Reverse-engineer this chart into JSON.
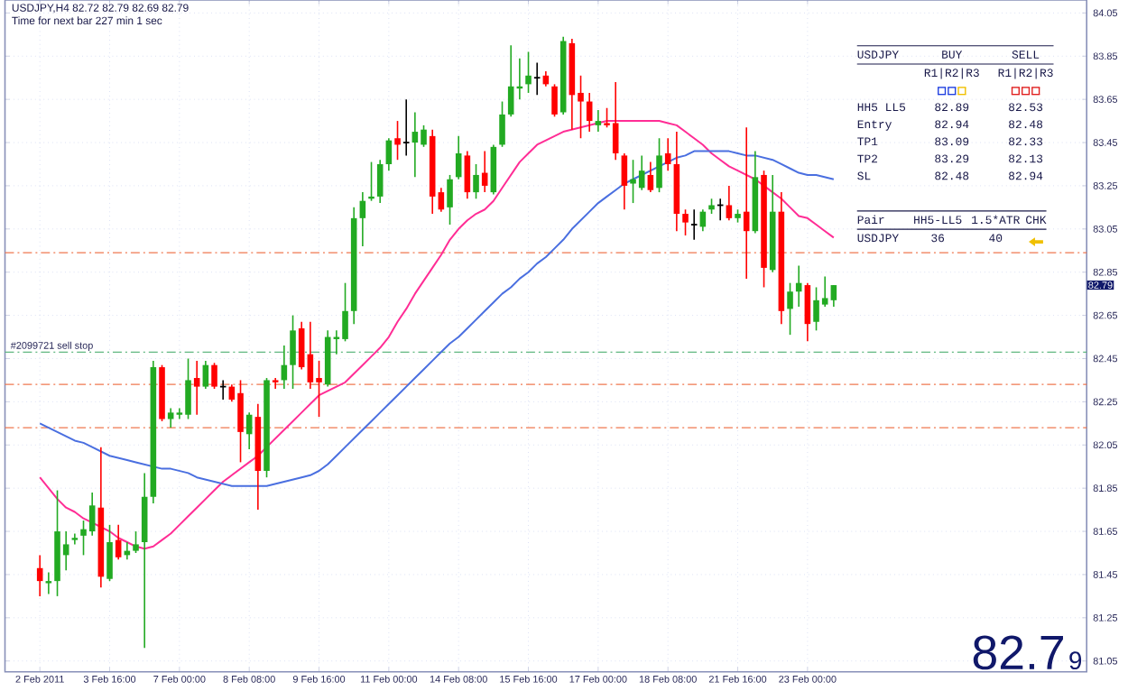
{
  "chart_data": [
    {
      "type": "candlestick",
      "title": "USDJPY,H4  82.72 82.79 82.69 82.79",
      "subtitle": "Time for next bar 227 min 1 sec",
      "categories": [
        "2 Feb 2011",
        null,
        null,
        null,
        null,
        null,
        null,
        null,
        "3 Feb 16:00",
        null,
        null,
        null,
        null,
        null,
        null,
        null,
        "7 Feb 00:00",
        null,
        null,
        null,
        null,
        null,
        null,
        null,
        "8 Feb 08:00",
        null,
        null,
        null,
        null,
        null,
        null,
        null,
        "9 Feb 16:00",
        null,
        null,
        null,
        null,
        null,
        null,
        null,
        "11 Feb 00:00",
        null,
        null,
        null,
        null,
        null,
        null,
        null,
        "14 Feb 08:00",
        null,
        null,
        null,
        null,
        null,
        null,
        null,
        "15 Feb 16:00",
        null,
        null,
        null,
        null,
        null,
        null,
        null,
        "17 Feb 00:00",
        null,
        null,
        null,
        null,
        null,
        null,
        null,
        "18 Feb 08:00",
        null,
        null,
        null,
        null,
        null,
        null,
        null,
        "21 Feb 16:00",
        null,
        null,
        null,
        null,
        null,
        null,
        null,
        "23 Feb 00:00",
        null,
        null,
        null
      ],
      "ohlc": [
        [
          81.48,
          81.54,
          81.35,
          81.42
        ],
        [
          81.41,
          81.46,
          81.36,
          81.42
        ],
        [
          81.42,
          81.84,
          81.35,
          81.65
        ],
        [
          81.54,
          81.65,
          81.47,
          81.59
        ],
        [
          81.61,
          81.64,
          81.59,
          81.62
        ],
        [
          81.63,
          81.7,
          81.54,
          81.66
        ],
        [
          81.65,
          81.83,
          81.63,
          81.77
        ],
        [
          81.76,
          82.04,
          81.39,
          81.44
        ],
        [
          81.43,
          81.68,
          81.42,
          81.6
        ],
        [
          81.61,
          81.68,
          81.52,
          81.53
        ],
        [
          81.54,
          81.6,
          81.52,
          81.56
        ],
        [
          81.56,
          81.65,
          81.55,
          81.59
        ],
        [
          81.6,
          81.92,
          81.11,
          81.81
        ],
        [
          81.81,
          82.44,
          81.78,
          82.41
        ],
        [
          82.41,
          82.42,
          82.16,
          82.17
        ],
        [
          82.17,
          82.22,
          82.13,
          82.2
        ],
        [
          82.19,
          82.22,
          82.17,
          82.2
        ],
        [
          82.19,
          82.45,
          82.17,
          82.35
        ],
        [
          82.36,
          82.44,
          82.19,
          82.32
        ],
        [
          82.32,
          82.44,
          82.31,
          82.42
        ],
        [
          82.42,
          82.43,
          82.31,
          82.32
        ],
        [
          82.32,
          82.35,
          82.26,
          82.32
        ],
        [
          82.32,
          82.33,
          82.25,
          82.26
        ],
        [
          82.29,
          82.35,
          81.97,
          82.11
        ],
        [
          82.1,
          82.2,
          82.03,
          82.19
        ],
        [
          82.18,
          82.24,
          81.75,
          81.93
        ],
        [
          81.93,
          82.36,
          81.9,
          82.35
        ],
        [
          82.35,
          82.36,
          82.31,
          82.34
        ],
        [
          82.35,
          82.51,
          82.31,
          82.42
        ],
        [
          82.42,
          82.65,
          82.31,
          82.58
        ],
        [
          82.59,
          82.62,
          82.4,
          82.41
        ],
        [
          82.47,
          82.62,
          82.31,
          82.34
        ],
        [
          82.36,
          82.44,
          82.18,
          82.34
        ],
        [
          82.33,
          82.58,
          82.32,
          82.55
        ],
        [
          82.54,
          82.58,
          82.47,
          82.55
        ],
        [
          82.54,
          82.8,
          82.53,
          82.67
        ],
        [
          82.67,
          83.15,
          82.61,
          83.1
        ],
        [
          83.1,
          83.22,
          82.97,
          83.18
        ],
        [
          83.19,
          83.36,
          83.18,
          83.2
        ],
        [
          83.2,
          83.37,
          83.17,
          83.35
        ],
        [
          83.35,
          83.47,
          83.32,
          83.46
        ],
        [
          83.47,
          83.55,
          83.37,
          83.44
        ],
        [
          83.45,
          83.65,
          83.39,
          83.45
        ],
        [
          83.45,
          83.59,
          83.29,
          83.5
        ],
        [
          83.44,
          83.53,
          83.43,
          83.51
        ],
        [
          83.48,
          83.51,
          83.12,
          83.2
        ],
        [
          83.22,
          83.24,
          83.13,
          83.14
        ],
        [
          83.15,
          83.3,
          83.07,
          83.28
        ],
        [
          83.29,
          83.48,
          83.28,
          83.4
        ],
        [
          83.39,
          83.41,
          83.19,
          83.22
        ],
        [
          83.22,
          83.35,
          83.19,
          83.3
        ],
        [
          83.31,
          83.41,
          83.22,
          83.25
        ],
        [
          83.22,
          83.44,
          83.21,
          83.43
        ],
        [
          83.44,
          83.64,
          83.43,
          83.58
        ],
        [
          83.58,
          83.9,
          83.57,
          83.71
        ],
        [
          83.7,
          83.84,
          83.65,
          83.71
        ],
        [
          83.72,
          83.87,
          83.68,
          83.76
        ],
        [
          83.75,
          83.82,
          83.67,
          83.75
        ],
        [
          83.76,
          83.78,
          83.71,
          83.72
        ],
        [
          83.71,
          83.72,
          83.57,
          83.58
        ],
        [
          83.59,
          83.94,
          83.58,
          83.92
        ],
        [
          83.91,
          83.93,
          83.51,
          83.67
        ],
        [
          83.68,
          83.76,
          83.47,
          83.64
        ],
        [
          83.64,
          83.68,
          83.5,
          83.55
        ],
        [
          83.53,
          83.6,
          83.5,
          83.55
        ],
        [
          83.54,
          83.61,
          83.52,
          83.53
        ],
        [
          83.54,
          83.73,
          83.37,
          83.4
        ],
        [
          83.39,
          83.4,
          83.14,
          83.25
        ],
        [
          83.26,
          83.37,
          83.17,
          83.28
        ],
        [
          83.24,
          83.39,
          83.23,
          83.32
        ],
        [
          83.3,
          83.36,
          83.22,
          83.23
        ],
        [
          83.24,
          83.47,
          83.22,
          83.39
        ],
        [
          83.4,
          83.47,
          83.32,
          83.35
        ],
        [
          83.35,
          83.5,
          83.04,
          83.12
        ],
        [
          83.12,
          83.14,
          83.02,
          83.08
        ],
        [
          83.07,
          83.14,
          83.0,
          83.07
        ],
        [
          83.06,
          83.14,
          83.04,
          83.13
        ],
        [
          83.14,
          83.19,
          83.12,
          83.16
        ],
        [
          83.16,
          83.19,
          83.09,
          83.16
        ],
        [
          83.16,
          83.25,
          83.09,
          83.1
        ],
        [
          83.1,
          83.14,
          83.08,
          83.12
        ],
        [
          83.13,
          83.52,
          82.82,
          83.04
        ],
        [
          83.04,
          83.41,
          83.03,
          83.29
        ],
        [
          83.3,
          83.32,
          82.78,
          82.87
        ],
        [
          82.86,
          83.3,
          82.85,
          83.13
        ],
        [
          83.13,
          83.22,
          82.61,
          82.67
        ],
        [
          82.68,
          82.8,
          82.56,
          82.76
        ],
        [
          82.76,
          82.88,
          82.69,
          82.8
        ],
        [
          82.79,
          82.8,
          82.53,
          82.61
        ],
        [
          82.62,
          82.78,
          82.58,
          82.72
        ],
        [
          82.7,
          82.83,
          82.69,
          82.73
        ],
        [
          82.72,
          82.79,
          82.69,
          82.79
        ]
      ],
      "colors": [
        "#ff0000",
        "#22aa22",
        "#22aa22",
        "#22aa22",
        "#22aa22",
        "#22aa22",
        "#22aa22",
        "#ff0000",
        "#22aa22",
        "#ff0000",
        "#22aa22",
        "#22aa22",
        "#22aa22",
        "#22aa22",
        "#ff0000",
        "#22aa22",
        "#22aa22",
        "#22aa22",
        "#ff0000",
        "#22aa22",
        "#ff0000",
        "#000000",
        "#ff0000",
        "#ff0000",
        "#22aa22",
        "#ff0000",
        "#22aa22",
        "#ff0000",
        "#22aa22",
        "#22aa22",
        "#ff0000",
        "#ff0000",
        "#ff0000",
        "#22aa22",
        "#22aa22",
        "#22aa22",
        "#22aa22",
        "#22aa22",
        "#22aa22",
        "#22aa22",
        "#22aa22",
        "#ff0000",
        "#000000",
        "#22aa22",
        "#22aa22",
        "#ff0000",
        "#ff0000",
        "#22aa22",
        "#22aa22",
        "#ff0000",
        "#22aa22",
        "#ff0000",
        "#22aa22",
        "#22aa22",
        "#22aa22",
        "#22aa22",
        "#22aa22",
        "#000000",
        "#ff0000",
        "#ff0000",
        "#22aa22",
        "#ff0000",
        "#ff0000",
        "#ff0000",
        "#22aa22",
        "#ff0000",
        "#ff0000",
        "#ff0000",
        "#22aa22",
        "#22aa22",
        "#ff0000",
        "#22aa22",
        "#ff0000",
        "#ff0000",
        "#ff0000",
        "#000000",
        "#22aa22",
        "#22aa22",
        "#000000",
        "#ff0000",
        "#22aa22",
        "#ff0000",
        "#22aa22",
        "#ff0000",
        "#22aa22",
        "#ff0000",
        "#22aa22",
        "#22aa22",
        "#ff0000",
        "#22aa22",
        "#22aa22",
        "#22aa22"
      ],
      "series": [
        {
          "type": "line",
          "color": "#ff2d95",
          "values": [
            81.9,
            81.85,
            81.8,
            81.76,
            81.74,
            81.71,
            81.69,
            81.67,
            81.65,
            81.62,
            81.6,
            81.58,
            81.57,
            81.58,
            81.61,
            81.64,
            81.68,
            81.72,
            81.76,
            81.8,
            81.84,
            81.88,
            81.91,
            81.94,
            81.97,
            82.0,
            82.04,
            82.08,
            82.12,
            82.16,
            82.2,
            82.24,
            82.28,
            82.3,
            82.32,
            82.34,
            82.38,
            82.42,
            82.46,
            82.5,
            82.55,
            82.62,
            82.68,
            82.75,
            82.81,
            82.87,
            82.93,
            83.0,
            83.05,
            83.09,
            83.12,
            83.14,
            83.18,
            83.24,
            83.3,
            83.36,
            83.4,
            83.44,
            83.46,
            83.48,
            83.5,
            83.51,
            83.52,
            83.53,
            83.54,
            83.55,
            83.55,
            83.55,
            83.55,
            83.55,
            83.55,
            83.55,
            83.54,
            83.53,
            83.5,
            83.47,
            83.44,
            83.4,
            83.37,
            83.34,
            83.32,
            83.3,
            83.28,
            83.25,
            83.22,
            83.19,
            83.15,
            83.11,
            83.1,
            83.07,
            83.04,
            83.01
          ]
        },
        {
          "type": "line",
          "color": "#4a6fe0",
          "values": [
            82.15,
            82.13,
            82.11,
            82.09,
            82.07,
            82.06,
            82.04,
            82.02,
            82.0,
            81.99,
            81.98,
            81.97,
            81.96,
            81.95,
            81.94,
            81.94,
            81.93,
            81.92,
            81.9,
            81.89,
            81.88,
            81.87,
            81.86,
            81.86,
            81.86,
            81.86,
            81.86,
            81.87,
            81.88,
            81.89,
            81.9,
            81.91,
            81.93,
            81.96,
            82.0,
            82.04,
            82.08,
            82.12,
            82.16,
            82.2,
            82.24,
            82.28,
            82.32,
            82.36,
            82.4,
            82.44,
            82.48,
            82.52,
            82.55,
            82.59,
            82.63,
            82.67,
            82.71,
            82.75,
            82.78,
            82.82,
            82.85,
            82.89,
            82.92,
            82.96,
            83.0,
            83.05,
            83.09,
            83.13,
            83.17,
            83.2,
            83.23,
            83.26,
            83.28,
            83.3,
            83.32,
            83.34,
            83.36,
            83.38,
            83.39,
            83.41,
            83.41,
            83.41,
            83.41,
            83.41,
            83.4,
            83.39,
            83.39,
            83.38,
            83.37,
            83.35,
            83.33,
            83.31,
            83.3,
            83.3,
            83.29,
            83.28
          ]
        }
      ],
      "ylim": [
        81.0,
        84.11
      ],
      "yticks": [
        81.05,
        81.25,
        81.45,
        81.65,
        81.85,
        82.05,
        82.25,
        82.45,
        82.65,
        82.85,
        83.05,
        83.25,
        83.45,
        83.65,
        83.85,
        84.05
      ],
      "grid": true,
      "ref_lines": [
        {
          "axis": "y",
          "value": 82.94,
          "color": "#f07850",
          "line_style": "dashed"
        },
        {
          "axis": "y",
          "value": 82.48,
          "color": "#60b880",
          "line_style": "dashed",
          "label": "#2099721 sell stop"
        },
        {
          "axis": "y",
          "value": 82.33,
          "color": "#f07850",
          "line_style": "dashed"
        },
        {
          "axis": "y",
          "value": 82.13,
          "color": "#f07850",
          "line_style": "dashed"
        }
      ],
      "annotations": [
        "82.79",
        "82.7",
        "9"
      ]
    },
    {
      "type": "other",
      "annotations": [
        "USDJPY",
        "BUY",
        "SELL",
        "R1|R2|R3",
        "R1|R2|R3",
        "HH5 LL5",
        "82.89",
        "82.53",
        "Entry",
        "82.94",
        "82.48",
        "TP1",
        "83.09",
        "82.33",
        "TP2",
        "83.29",
        "82.13",
        "SL",
        "82.48",
        "82.94",
        "Pair",
        "HH5-LL5",
        "1.5*ATR",
        "CHK",
        "USDJPY",
        "36",
        "40"
      ]
    }
  ]
}
